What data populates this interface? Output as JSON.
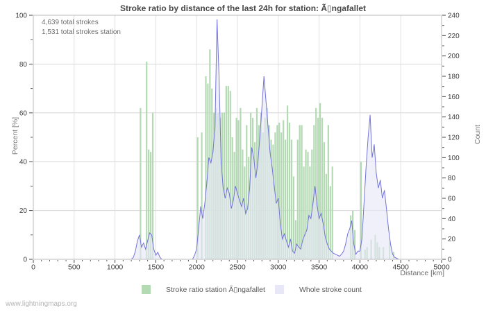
{
  "watermark": "www.lightningmaps.org",
  "chart_data": {
    "type": "bar+area",
    "title": "Stroke ratio by distance of the last 24h for station: Ã▯ngafallet",
    "annotations": [
      "4,639 total strokes",
      "1,531 total strokes station"
    ],
    "xlabel": "Distance  [km]",
    "ylabel_left": "Percent  [%]",
    "ylabel_right": "Count",
    "grid": "on",
    "legend_position": "bottom-center",
    "x_axis": {
      "min": 0,
      "max": 5000,
      "major_ticks": [
        0,
        500,
        1000,
        1500,
        2000,
        2500,
        3000,
        3500,
        4000,
        4500,
        5000
      ],
      "tick_labels": [
        "0",
        "500",
        "1000",
        "1500",
        "2000",
        "2500",
        "3000",
        "3500",
        "4000",
        "4500",
        "5000"
      ],
      "minor_tick_step": 100
    },
    "y_left": {
      "min": 0,
      "max": 100,
      "major_ticks": [
        0,
        20,
        40,
        60,
        80,
        100
      ],
      "tick_labels": [
        "0",
        "20",
        "40",
        "60",
        "80",
        "100"
      ],
      "minor_tick_step": 10
    },
    "y_right": {
      "min": 0,
      "max": 240,
      "major_ticks": [
        0,
        20,
        40,
        60,
        80,
        100,
        120,
        140,
        160,
        180,
        200,
        220,
        240
      ],
      "tick_labels": [
        "0",
        "20",
        "40",
        "60",
        "80",
        "100",
        "120",
        "140",
        "160",
        "180",
        "200",
        "220",
        "240"
      ],
      "minor_tick_step": 10
    },
    "bin_width_km": 25,
    "series": [
      {
        "name": "Stroke ratio station Ã▯ngafallet",
        "kind": "bar",
        "axis": "left",
        "color": "#b4dab4",
        "points": [
          [
            1300,
            62
          ],
          [
            1375,
            81
          ],
          [
            1400,
            45
          ],
          [
            1425,
            44
          ],
          [
            1450,
            60
          ],
          [
            2000,
            50
          ],
          [
            2050,
            52
          ],
          [
            2100,
            75
          ],
          [
            2125,
            72
          ],
          [
            2150,
            86
          ],
          [
            2175,
            70
          ],
          [
            2200,
            60
          ],
          [
            2225,
            62
          ],
          [
            2250,
            60
          ],
          [
            2275,
            58
          ],
          [
            2300,
            60
          ],
          [
            2325,
            60
          ],
          [
            2350,
            71
          ],
          [
            2375,
            71
          ],
          [
            2400,
            69
          ],
          [
            2425,
            50
          ],
          [
            2450,
            44
          ],
          [
            2475,
            58
          ],
          [
            2500,
            57
          ],
          [
            2525,
            62
          ],
          [
            2550,
            45
          ],
          [
            2575,
            38
          ],
          [
            2600,
            55
          ],
          [
            2625,
            42
          ],
          [
            2650,
            60
          ],
          [
            2675,
            58
          ],
          [
            2700,
            48
          ],
          [
            2725,
            62
          ],
          [
            2750,
            55
          ],
          [
            2775,
            60
          ],
          [
            2800,
            52
          ],
          [
            2825,
            58
          ],
          [
            2850,
            62
          ],
          [
            2875,
            55
          ],
          [
            2900,
            49
          ],
          [
            2925,
            47
          ],
          [
            2950,
            52
          ],
          [
            2975,
            55
          ],
          [
            3000,
            56
          ],
          [
            3025,
            52
          ],
          [
            3050,
            57
          ],
          [
            3075,
            49
          ],
          [
            3100,
            63
          ],
          [
            3125,
            56
          ],
          [
            3150,
            49
          ],
          [
            3175,
            34
          ],
          [
            3200,
            16
          ],
          [
            3225,
            49
          ],
          [
            3250,
            55
          ],
          [
            3275,
            55
          ],
          [
            3300,
            38
          ],
          [
            3325,
            45
          ],
          [
            3350,
            44
          ],
          [
            3375,
            38
          ],
          [
            3400,
            45
          ],
          [
            3425,
            55
          ],
          [
            3450,
            62
          ],
          [
            3475,
            58
          ],
          [
            3500,
            64
          ],
          [
            3525,
            58
          ],
          [
            3550,
            48
          ],
          [
            3575,
            35
          ],
          [
            3600,
            55
          ],
          [
            3625,
            30
          ],
          [
            3650,
            38
          ],
          [
            3875,
            18
          ],
          [
            3900,
            20
          ],
          [
            3925,
            12
          ],
          [
            4000,
            40
          ],
          [
            4050,
            4
          ],
          [
            4075,
            5
          ],
          [
            4125,
            8
          ],
          [
            4175,
            10
          ],
          [
            4200,
            7
          ],
          [
            4225,
            5
          ],
          [
            4275,
            5
          ],
          [
            4350,
            7
          ],
          [
            4400,
            3
          ]
        ]
      },
      {
        "name": "Whole stroke count",
        "kind": "area",
        "axis": "right",
        "line_color": "#7373d8",
        "fill_color": "#e7e7f7",
        "points": [
          [
            0,
            0
          ],
          [
            1200,
            0
          ],
          [
            1225,
            2
          ],
          [
            1250,
            8
          ],
          [
            1275,
            18
          ],
          [
            1300,
            24
          ],
          [
            1325,
            12
          ],
          [
            1350,
            16
          ],
          [
            1375,
            10
          ],
          [
            1400,
            18
          ],
          [
            1425,
            26
          ],
          [
            1450,
            24
          ],
          [
            1475,
            10
          ],
          [
            1500,
            4
          ],
          [
            1525,
            7
          ],
          [
            1550,
            2
          ],
          [
            1575,
            0
          ],
          [
            1950,
            0
          ],
          [
            1975,
            4
          ],
          [
            2000,
            10
          ],
          [
            2025,
            30
          ],
          [
            2050,
            52
          ],
          [
            2075,
            40
          ],
          [
            2100,
            55
          ],
          [
            2125,
            75
          ],
          [
            2150,
            100
          ],
          [
            2175,
            95
          ],
          [
            2200,
            105
          ],
          [
            2225,
            130
          ],
          [
            2250,
            236
          ],
          [
            2275,
            180
          ],
          [
            2300,
            95
          ],
          [
            2325,
            70
          ],
          [
            2350,
            60
          ],
          [
            2375,
            70
          ],
          [
            2400,
            65
          ],
          [
            2425,
            50
          ],
          [
            2450,
            58
          ],
          [
            2475,
            72
          ],
          [
            2500,
            65
          ],
          [
            2525,
            58
          ],
          [
            2550,
            52
          ],
          [
            2575,
            60
          ],
          [
            2600,
            45
          ],
          [
            2625,
            50
          ],
          [
            2650,
            70
          ],
          [
            2675,
            110
          ],
          [
            2700,
            100
          ],
          [
            2725,
            80
          ],
          [
            2750,
            95
          ],
          [
            2775,
            120
          ],
          [
            2800,
            150
          ],
          [
            2825,
            180
          ],
          [
            2850,
            155
          ],
          [
            2875,
            130
          ],
          [
            2900,
            105
          ],
          [
            2925,
            90
          ],
          [
            2950,
            72
          ],
          [
            2975,
            55
          ],
          [
            3000,
            60
          ],
          [
            3025,
            35
          ],
          [
            3050,
            20
          ],
          [
            3075,
            25
          ],
          [
            3100,
            18
          ],
          [
            3125,
            12
          ],
          [
            3150,
            20
          ],
          [
            3175,
            8
          ],
          [
            3200,
            6
          ],
          [
            3225,
            15
          ],
          [
            3250,
            12
          ],
          [
            3275,
            10
          ],
          [
            3300,
            19
          ],
          [
            3325,
            24
          ],
          [
            3350,
            29
          ],
          [
            3375,
            43
          ],
          [
            3400,
            40
          ],
          [
            3425,
            55
          ],
          [
            3450,
            72
          ],
          [
            3475,
            53
          ],
          [
            3500,
            40
          ],
          [
            3525,
            45
          ],
          [
            3550,
            35
          ],
          [
            3575,
            22
          ],
          [
            3600,
            15
          ],
          [
            3625,
            10
          ],
          [
            3650,
            8
          ],
          [
            3675,
            6
          ],
          [
            3700,
            5
          ],
          [
            3725,
            4
          ],
          [
            3750,
            3
          ],
          [
            3775,
            5
          ],
          [
            3800,
            8
          ],
          [
            3825,
            15
          ],
          [
            3850,
            25
          ],
          [
            3875,
            30
          ],
          [
            3900,
            38
          ],
          [
            3925,
            15
          ],
          [
            3950,
            5
          ],
          [
            3975,
            8
          ],
          [
            4000,
            8
          ],
          [
            4025,
            20
          ],
          [
            4050,
            55
          ],
          [
            4075,
            90
          ],
          [
            4100,
            120
          ],
          [
            4125,
            142
          ],
          [
            4150,
            100
          ],
          [
            4175,
            113
          ],
          [
            4200,
            85
          ],
          [
            4225,
            70
          ],
          [
            4250,
            78
          ],
          [
            4275,
            60
          ],
          [
            4300,
            68
          ],
          [
            4325,
            50
          ],
          [
            4350,
            30
          ],
          [
            4375,
            15
          ],
          [
            4400,
            5
          ],
          [
            4425,
            2
          ],
          [
            4450,
            1
          ],
          [
            4475,
            0
          ],
          [
            5000,
            0
          ]
        ]
      }
    ]
  }
}
